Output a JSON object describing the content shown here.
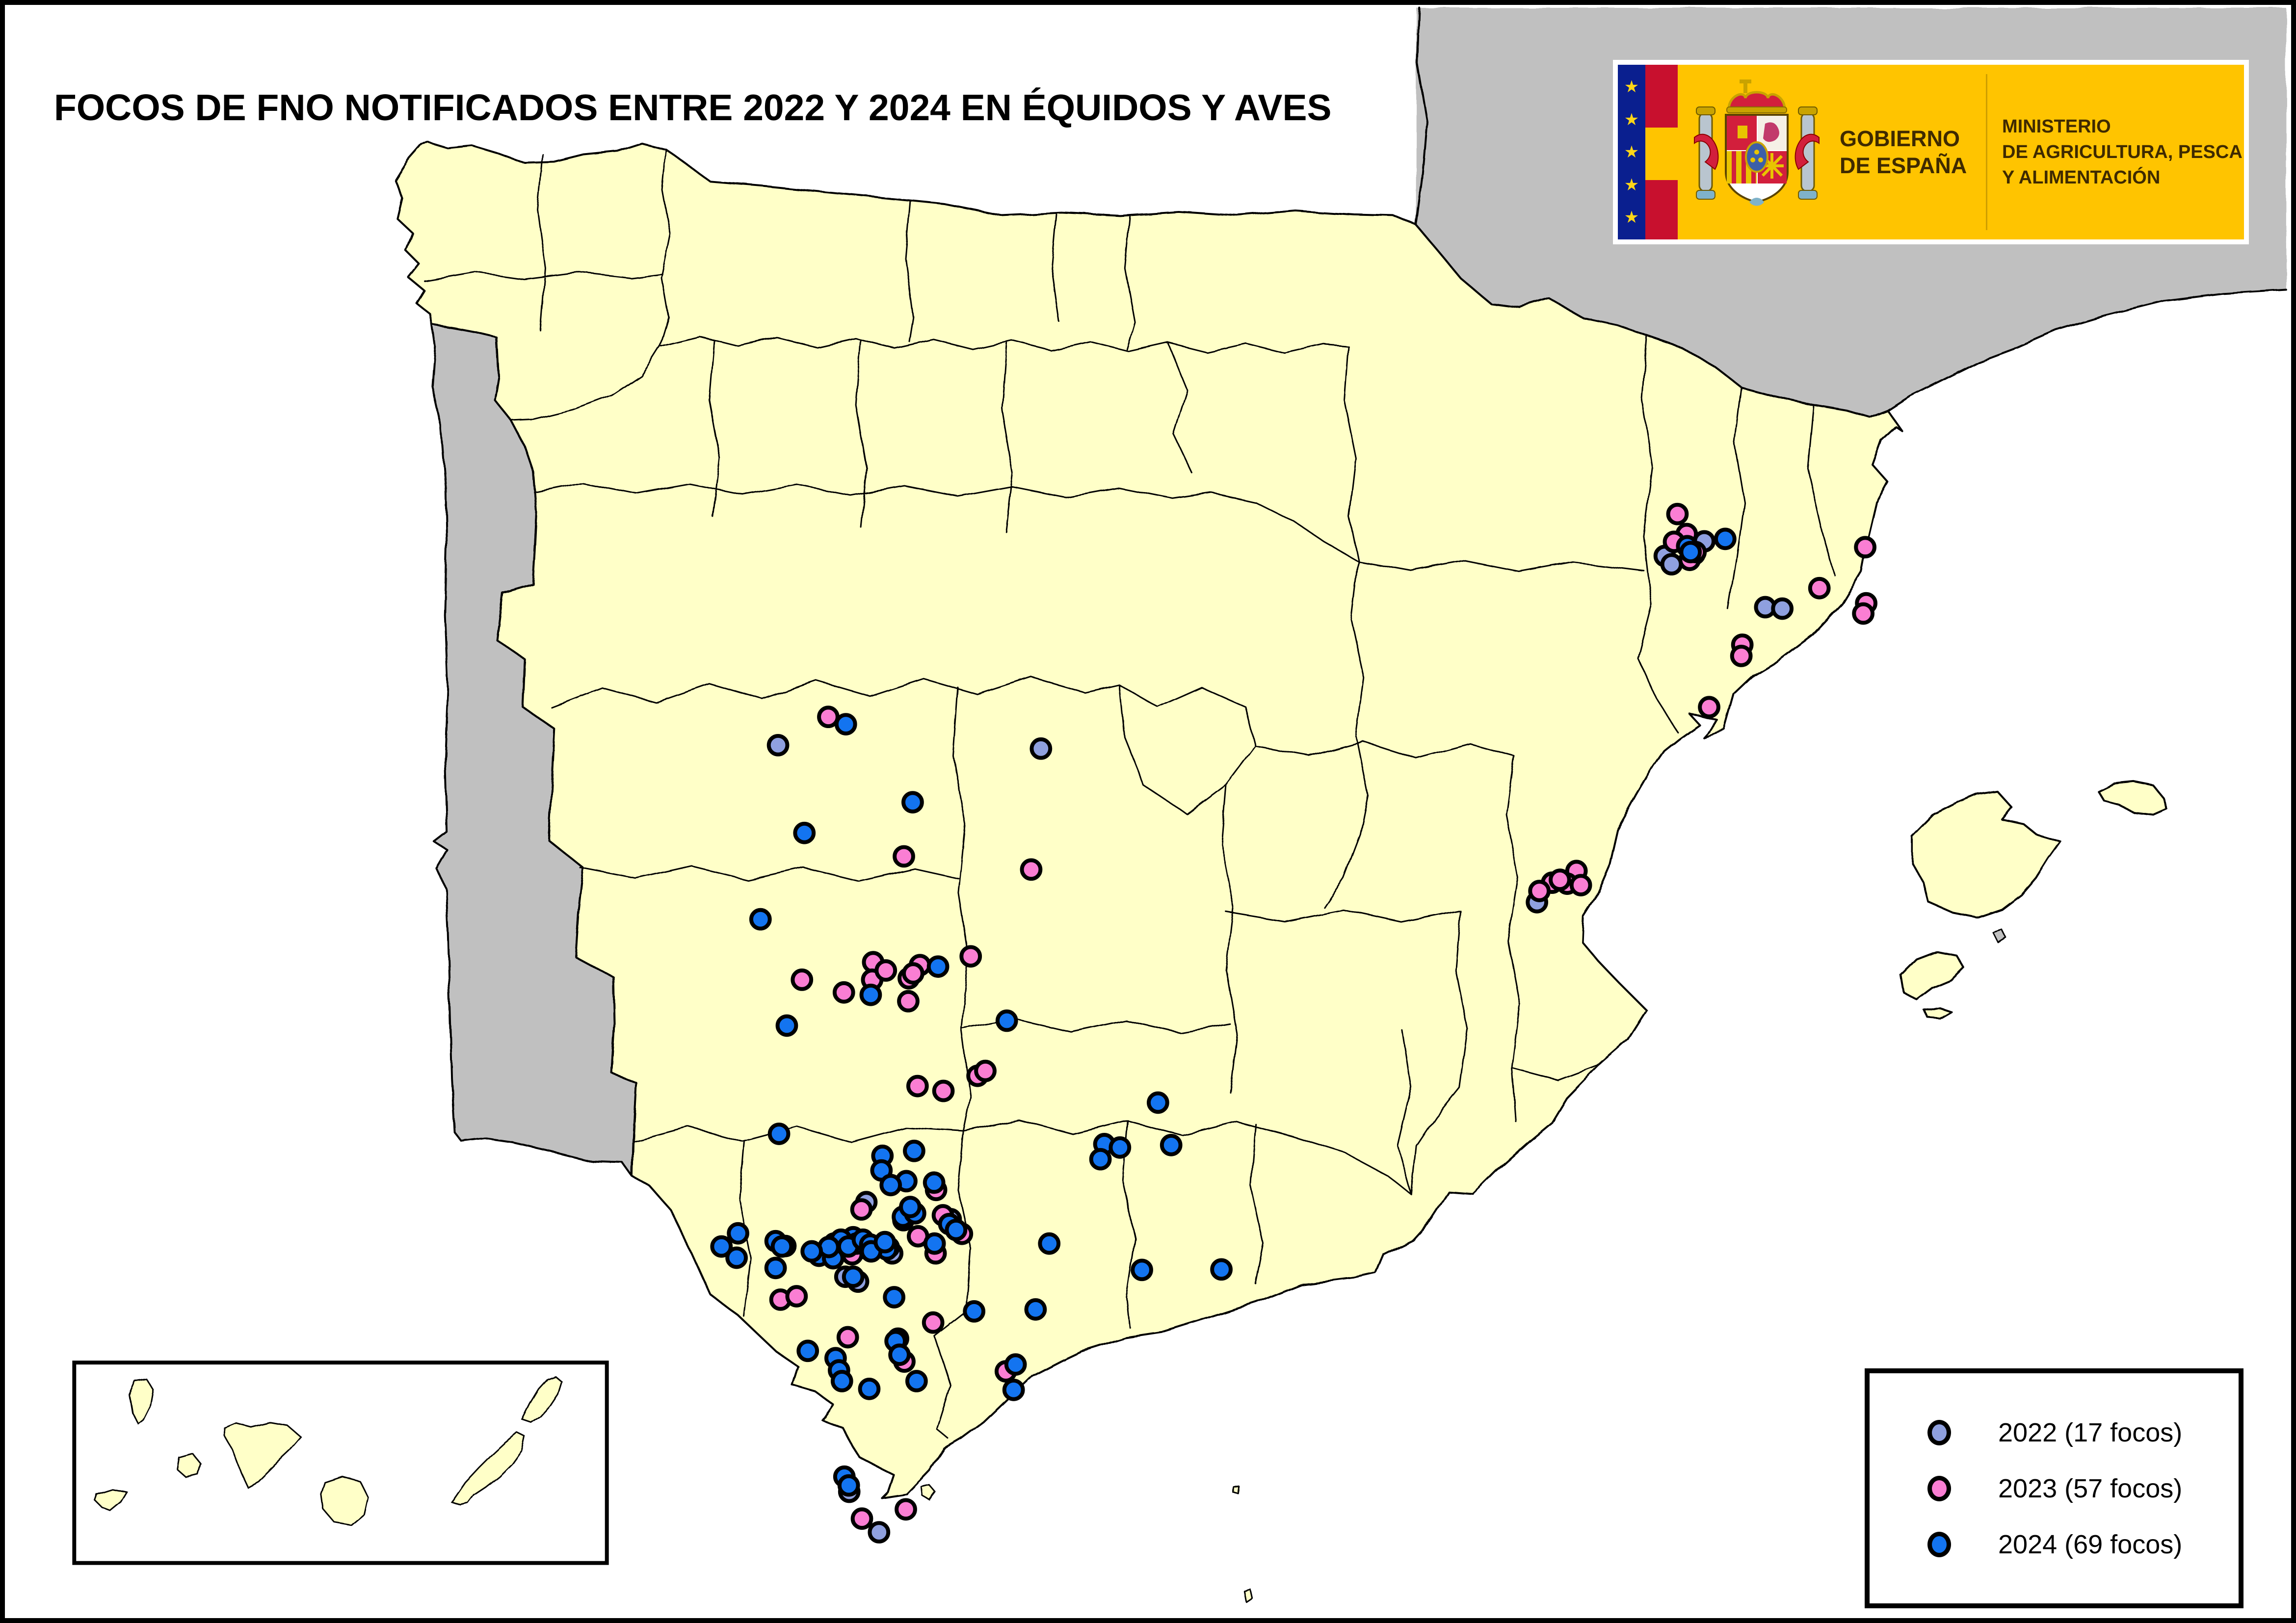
{
  "title": "FOCOS DE FNO NOTIFICADOS ENTRE 2022 Y 2024 EN ÉQUIDOS Y AVES",
  "logo": {
    "government_line1": "GOBIERNO",
    "government_line2": "DE ESPAÑA",
    "ministry_line1": "MINISTERIO",
    "ministry_line2": "DE AGRICULTURA, PESCA",
    "ministry_line3": "Y ALIMENTACIÓN",
    "colors": {
      "background": "#FFC400",
      "eu_band": "#0A1F8F",
      "star": "#FFD617",
      "flag_red": "#C8102E",
      "flag_yellow": "#FFC400",
      "text": "#3F2A00"
    }
  },
  "legend": {
    "items": [
      {
        "year": "2022",
        "label": "2022 (17 focos)",
        "count": 17,
        "color": "#8FA0DF"
      },
      {
        "year": "2023",
        "label": "2023 (57 focos)",
        "count": 57,
        "color": "#FA7ED3"
      },
      {
        "year": "2024",
        "label": "2024 (69 focos)",
        "count": 69,
        "color": "#1374F0"
      }
    ]
  },
  "map": {
    "colors": {
      "sea": "#FFFFFF",
      "spain_land": "#FFFFC8",
      "foreign_land": "#C0C0C0",
      "border": "#000000",
      "inset_background": "#FFFFFF"
    },
    "point_style": {
      "radius": 19,
      "stroke_width": 8
    },
    "points": {
      "2022": [
        [
          3480,
          1100
        ],
        [
          3399,
          1130
        ],
        [
          3413,
          1147
        ],
        [
          3460,
          1126
        ],
        [
          3605,
          1235
        ],
        [
          3640,
          1238
        ],
        [
          3137,
          1840
        ],
        [
          2120,
          1525
        ],
        [
          1581,
          1518
        ],
        [
          1762,
          2455
        ],
        [
          1719,
          2608
        ],
        [
          1745,
          2618
        ],
        [
          1815,
          2560
        ],
        [
          1596,
          2545
        ],
        [
          1727,
          3049
        ],
        [
          1788,
          3132
        ],
        [
          1935,
          2490
        ]
      ],
      "2023": [
        [
          3425,
          1044
        ],
        [
          3444,
          1085
        ],
        [
          3418,
          1101
        ],
        [
          3450,
          1138
        ],
        [
          3462,
          1122
        ],
        [
          3810,
          1112
        ],
        [
          3716,
          1196
        ],
        [
          3812,
          1227
        ],
        [
          3806,
          1248
        ],
        [
          3558,
          1312
        ],
        [
          3556,
          1335
        ],
        [
          3490,
          1440
        ],
        [
          3218,
          1776
        ],
        [
          3168,
          1800
        ],
        [
          3199,
          1802
        ],
        [
          3227,
          1805
        ],
        [
          3142,
          1817
        ],
        [
          3184,
          1794
        ],
        [
          1684,
          1460
        ],
        [
          1839,
          1746
        ],
        [
          2100,
          1773
        ],
        [
          1776,
          1963
        ],
        [
          1774,
          1999
        ],
        [
          1849,
          1996
        ],
        [
          1872,
          1969
        ],
        [
          1976,
          1951
        ],
        [
          1848,
          2043
        ],
        [
          1630,
          1999
        ],
        [
          1716,
          2025
        ],
        [
          1990,
          2196
        ],
        [
          2006,
          2186
        ],
        [
          1867,
          2217
        ],
        [
          1920,
          2227
        ],
        [
          1802,
          1980
        ],
        [
          1858,
          1986
        ],
        [
          1919,
          2482
        ],
        [
          1752,
          2470
        ],
        [
          1868,
          2525
        ],
        [
          1904,
          2560
        ],
        [
          1586,
          2655
        ],
        [
          1619,
          2648
        ],
        [
          1899,
          2702
        ],
        [
          1724,
          2732
        ],
        [
          1827,
          2735
        ],
        [
          1840,
          2782
        ],
        [
          2048,
          2802
        ],
        [
          1753,
          3104
        ],
        [
          1843,
          3085
        ],
        [
          1700,
          2548
        ],
        [
          1748,
          2538
        ],
        [
          1762,
          2550
        ],
        [
          1685,
          2562
        ],
        [
          1733,
          2562
        ],
        [
          1808,
          2548
        ],
        [
          1838,
          2492
        ],
        [
          1905,
          2430
        ],
        [
          1958,
          2520
        ]
      ],
      "2024": [
        [
          3445,
          1110
        ],
        [
          3452,
          1122
        ],
        [
          3523,
          1095
        ],
        [
          1720,
          1475
        ],
        [
          1857,
          1635
        ],
        [
          1635,
          1698
        ],
        [
          1545,
          1875
        ],
        [
          1909,
          1972
        ],
        [
          1771,
          2030
        ],
        [
          1599,
          2093
        ],
        [
          2050,
          2083
        ],
        [
          2360,
          2251
        ],
        [
          2250,
          2336
        ],
        [
          2282,
          2343
        ],
        [
          2242,
          2367
        ],
        [
          2387,
          2338
        ],
        [
          2327,
          2594
        ],
        [
          2490,
          2593
        ],
        [
          1583,
          2315
        ],
        [
          1795,
          2360
        ],
        [
          1860,
          2350
        ],
        [
          1793,
          2390
        ],
        [
          1844,
          2412
        ],
        [
          1901,
          2415
        ],
        [
          1837,
          2485
        ],
        [
          1862,
          2478
        ],
        [
          1932,
          2500
        ],
        [
          1946,
          2512
        ],
        [
          2137,
          2540
        ],
        [
          1499,
          2519
        ],
        [
          1465,
          2546
        ],
        [
          1496,
          2569
        ],
        [
          1576,
          2535
        ],
        [
          1589,
          2546
        ],
        [
          1576,
          2590
        ],
        [
          1696,
          2540
        ],
        [
          1735,
          2527
        ],
        [
          1742,
          2540
        ],
        [
          1789,
          2546
        ],
        [
          1804,
          2552
        ],
        [
          1665,
          2565
        ],
        [
          1694,
          2570
        ],
        [
          1735,
          2608
        ],
        [
          1710,
          2532
        ],
        [
          1725,
          2546
        ],
        [
          1755,
          2532
        ],
        [
          1770,
          2542
        ],
        [
          1685,
          2547
        ],
        [
          1650,
          2556
        ],
        [
          1772,
          2556
        ],
        [
          1800,
          2537
        ],
        [
          1642,
          2760
        ],
        [
          1699,
          2775
        ],
        [
          1706,
          2800
        ],
        [
          1712,
          2822
        ],
        [
          1768,
          2838
        ],
        [
          1822,
          2740
        ],
        [
          1830,
          2768
        ],
        [
          1865,
          2822
        ],
        [
          1819,
          2650
        ],
        [
          1983,
          2679
        ],
        [
          2109,
          2675
        ],
        [
          2068,
          2788
        ],
        [
          2064,
          2840
        ],
        [
          1717,
          3018
        ],
        [
          1726,
          3036
        ],
        [
          1812,
          2420
        ],
        [
          1852,
          2465
        ],
        [
          1902,
          2540
        ]
      ]
    }
  }
}
